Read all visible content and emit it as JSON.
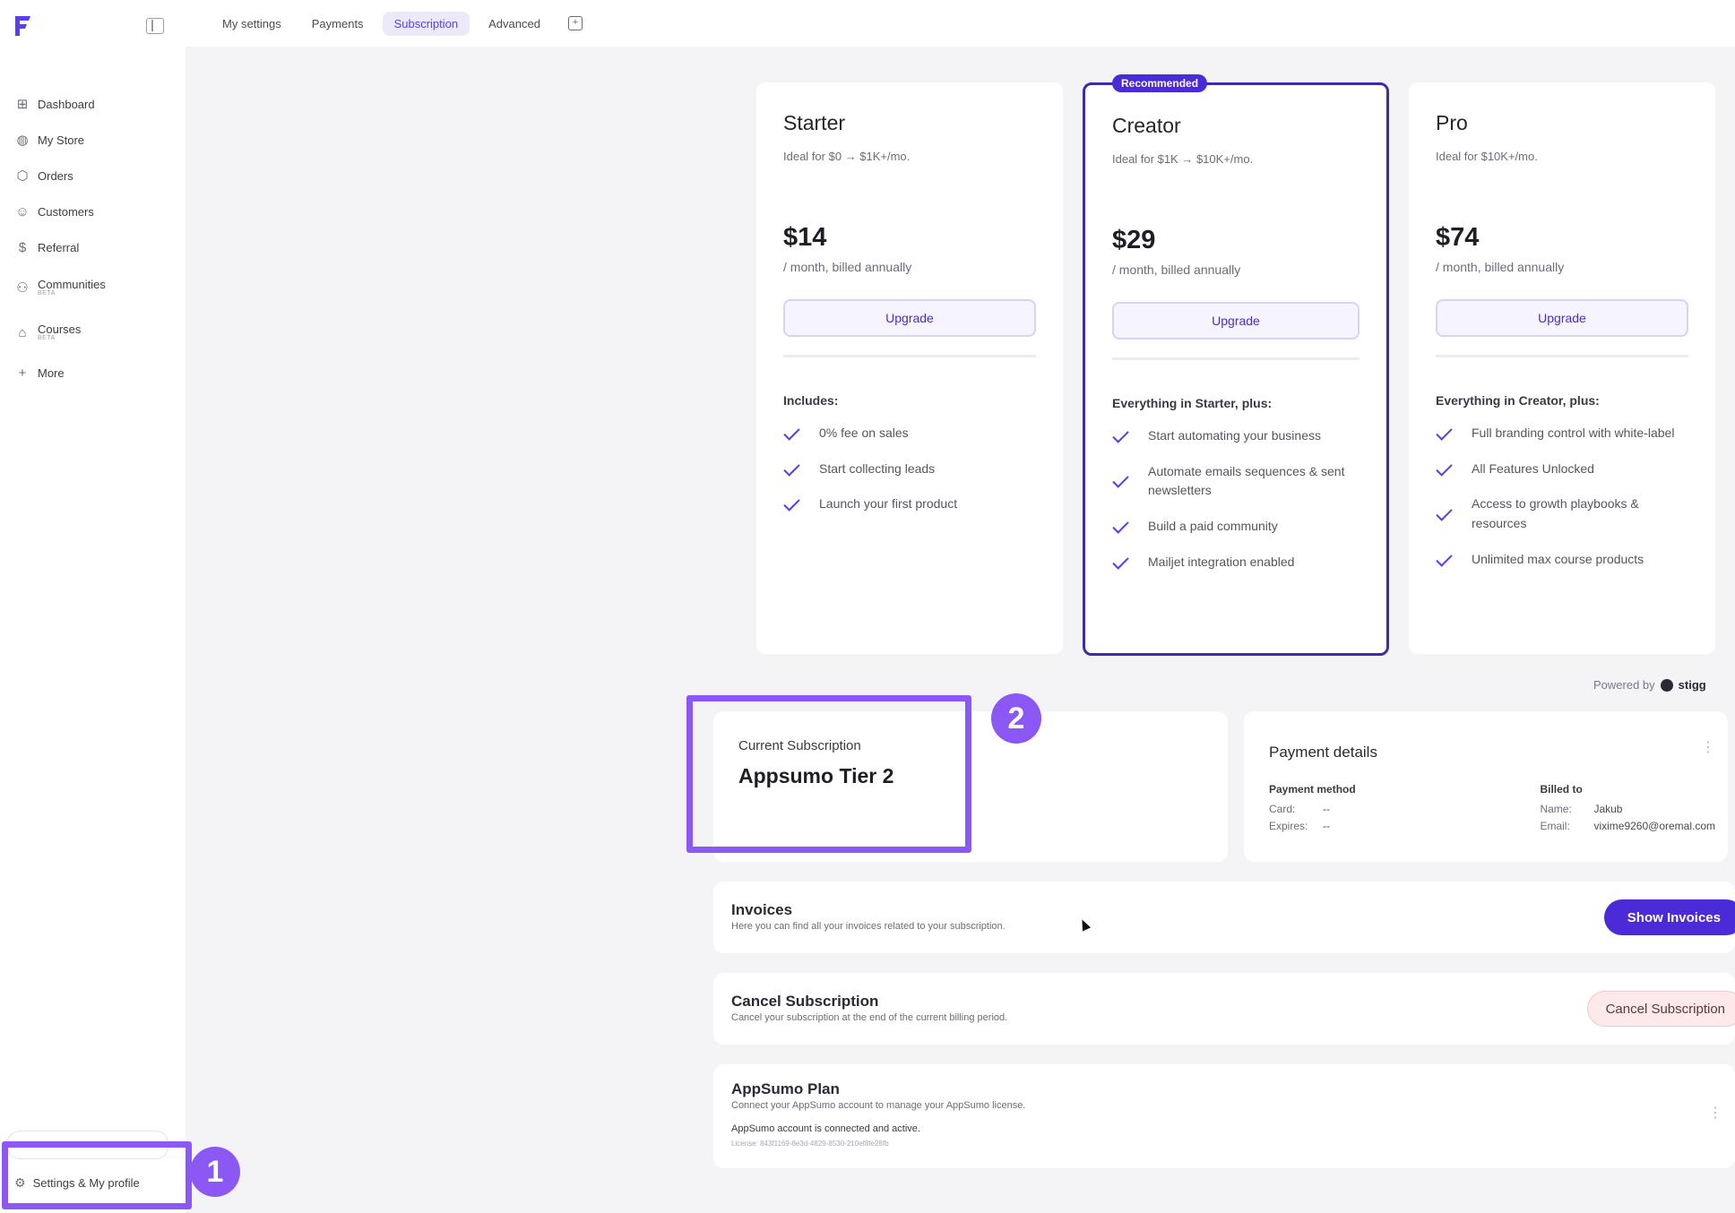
{
  "sidebar": {
    "items": [
      {
        "label": "Dashboard",
        "icon": "dashboard-icon",
        "glyph": "⊞"
      },
      {
        "label": "My Store",
        "icon": "palette-icon",
        "glyph": "◍"
      },
      {
        "label": "Orders",
        "icon": "tag-icon",
        "glyph": "⬡"
      },
      {
        "label": "Customers",
        "icon": "users-icon",
        "glyph": "☺"
      },
      {
        "label": "Referral",
        "icon": "money-bag-icon",
        "glyph": "$"
      },
      {
        "label": "Communities",
        "badge": "BETA",
        "icon": "community-icon",
        "glyph": "⚇"
      },
      {
        "label": "Courses",
        "badge": "BETA",
        "icon": "graduation-icon",
        "glyph": "⌂"
      },
      {
        "label": "More",
        "icon": "plus-icon",
        "glyph": "+"
      }
    ],
    "settings_label": "Settings & My profile"
  },
  "tabs": [
    {
      "label": "My settings",
      "active": false
    },
    {
      "label": "Payments",
      "active": false
    },
    {
      "label": "Subscription",
      "active": true
    },
    {
      "label": "Advanced",
      "active": false
    }
  ],
  "plans": [
    {
      "name": "Starter",
      "ideal": "Ideal for $0 → $1K+/mo.",
      "price": "$14",
      "billing": "/ month, billed annually",
      "button": "Upgrade",
      "features_heading": "Includes:",
      "features": [
        "0% fee on sales",
        "Start collecting leads",
        "Launch your first product"
      ]
    },
    {
      "name": "Creator",
      "recommended": "Recommended",
      "ideal": "Ideal for $1K → $10K+/mo.",
      "price": "$29",
      "billing": "/ month, billed annually",
      "button": "Upgrade",
      "features_heading": "Everything in Starter, plus:",
      "features": [
        "Start automating your business",
        "Automate emails sequences & sent newsletters",
        "Build a paid community",
        "Mailjet integration enabled"
      ]
    },
    {
      "name": "Pro",
      "ideal": "Ideal for $10K+/mo.",
      "price": "$74",
      "billing": "/ month, billed annually",
      "button": "Upgrade",
      "features_heading": "Everything in Creator, plus:",
      "features": [
        "Full branding control with white-label",
        "All Features Unlocked",
        "Access to growth playbooks & resources",
        "Unlimited max course products"
      ]
    }
  ],
  "powered_by": {
    "prefix": "Powered by",
    "brand": "stigg"
  },
  "current_subscription": {
    "label": "Current Subscription",
    "value": "Appsumo Tier 2"
  },
  "payment_details": {
    "title": "Payment details",
    "method_heading": "Payment method",
    "card_label": "Card:",
    "card_value": "--",
    "expires_label": "Expires:",
    "expires_value": "--",
    "billed_heading": "Billed to",
    "name_label": "Name:",
    "name_value": "Jakub",
    "email_label": "Email:",
    "email_value": "vixime9260@oremal.com"
  },
  "invoices": {
    "title": "Invoices",
    "subtitle": "Here you can find all your invoices related to your subscription.",
    "button": "Show Invoices"
  },
  "cancel": {
    "title": "Cancel Subscription",
    "subtitle": "Cancel your subscription at the end of the current billing period.",
    "button": "Cancel Subscription"
  },
  "appsumo": {
    "title": "AppSumo Plan",
    "subtitle": "Connect your AppSumo account to manage your AppSumo license.",
    "status": "AppSumo account is connected and active.",
    "license": "License: 843f1169-8e3d-4829-8530-210ef8fe28fb"
  },
  "annotations": {
    "badge_1": "1",
    "badge_2": "2"
  },
  "colors": {
    "accent": "#4b2bd8",
    "highlight": "#8b57f5"
  }
}
